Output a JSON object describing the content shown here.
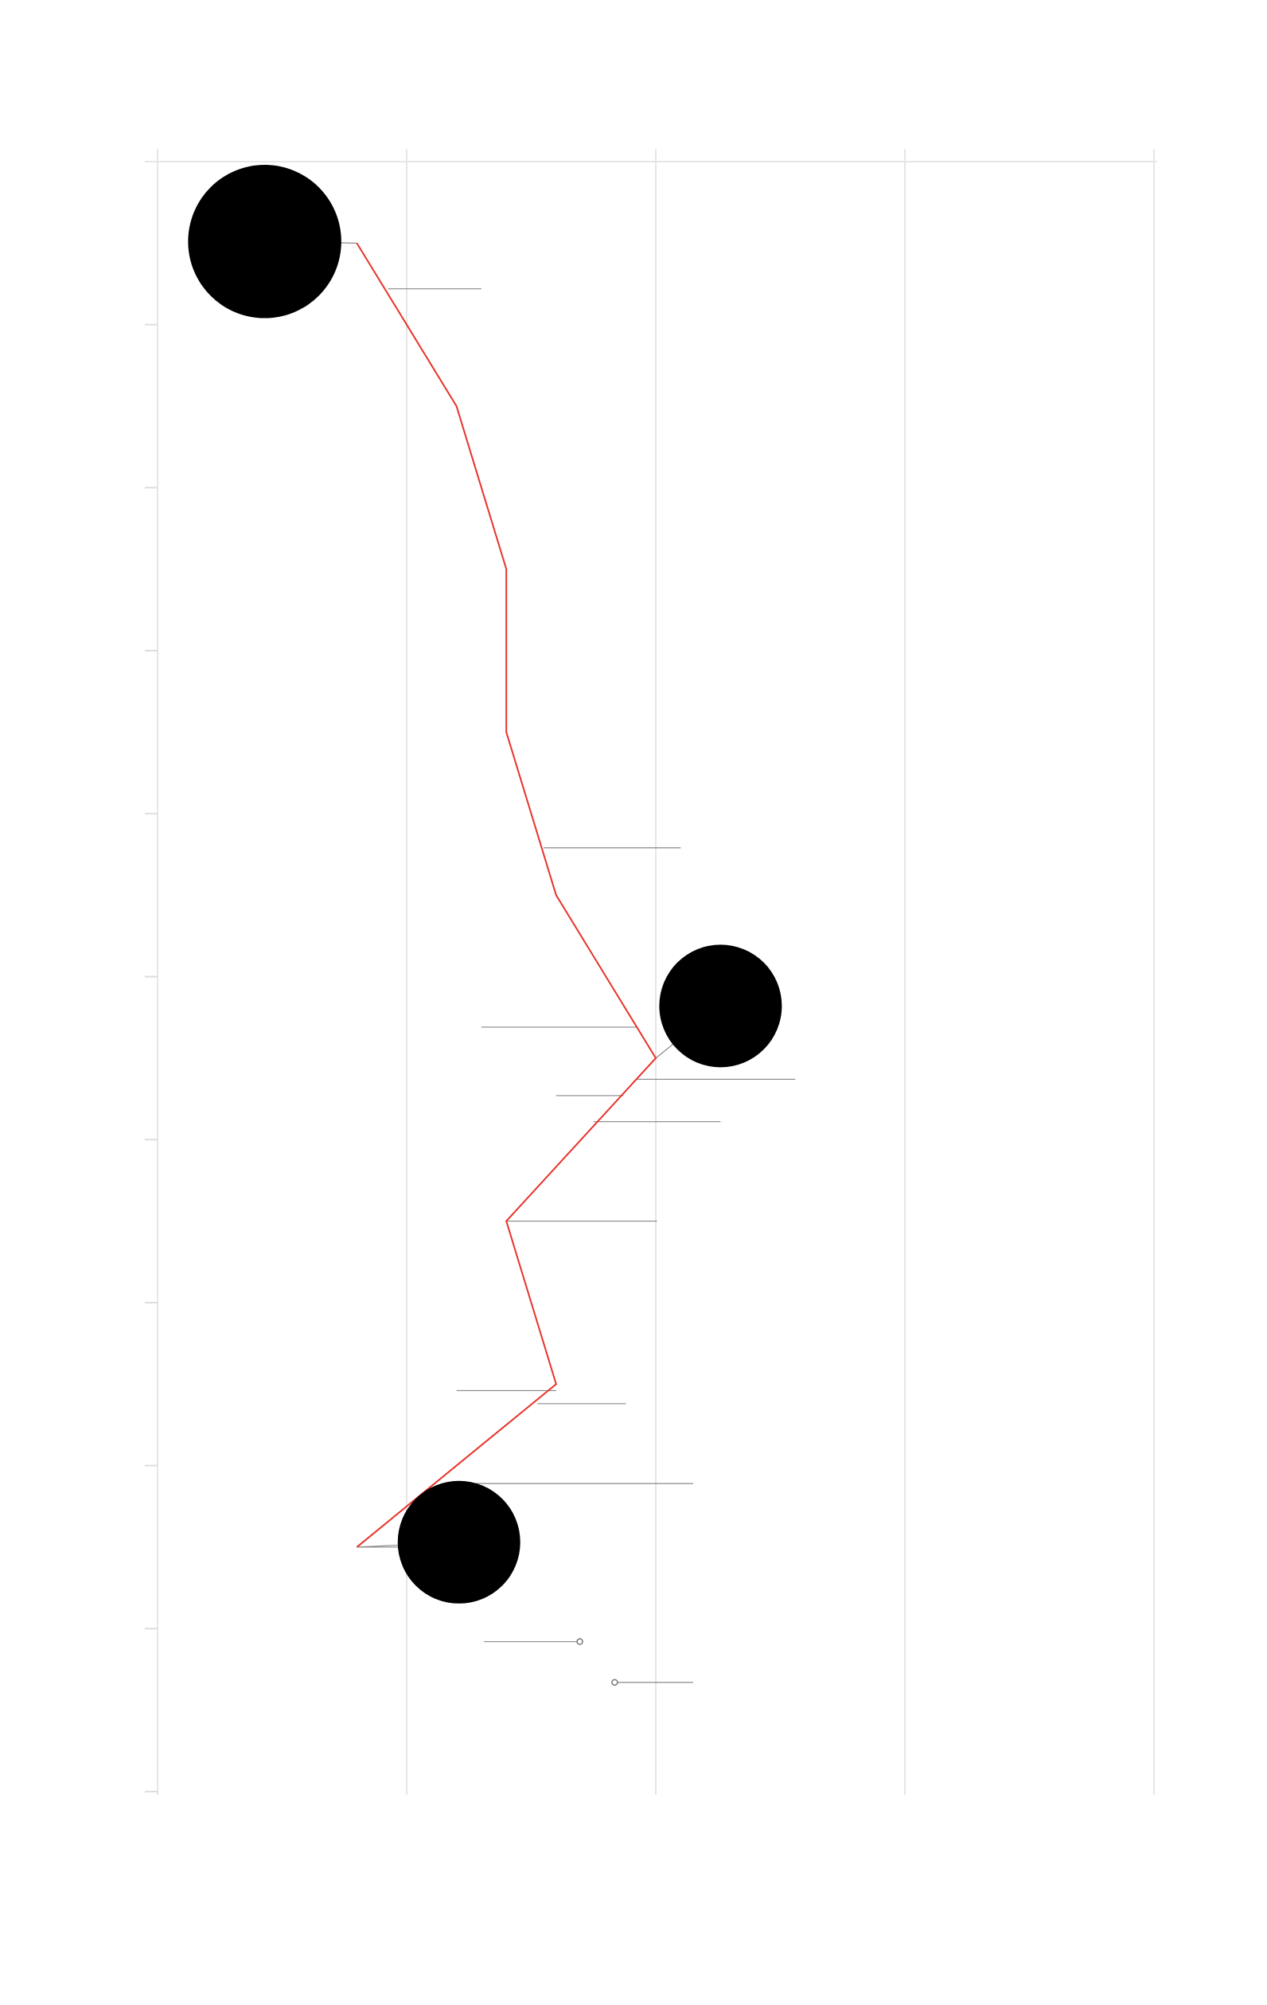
{
  "chart_data": {
    "type": "line",
    "title": "",
    "xlabel": "",
    "ylabel": "",
    "orientation": "vertical-path",
    "xlim": [
      0,
      8
    ],
    "ylim": [
      0,
      10
    ],
    "grid": {
      "vertical": true,
      "horizontal": false
    },
    "legend": "none",
    "x_gridlines": [
      0,
      2,
      4,
      6,
      8
    ],
    "y_ticks": [
      0,
      1,
      2,
      3,
      4,
      5,
      6,
      7,
      8,
      9,
      10
    ],
    "series": [
      {
        "color": "#e8322a",
        "points": [
          {
            "x": 1.6,
            "y": 0.5
          },
          {
            "x": 2.4,
            "y": 1.5
          },
          {
            "x": 2.8,
            "y": 2.5
          },
          {
            "x": 2.8,
            "y": 3.5
          },
          {
            "x": 3.2,
            "y": 4.5
          },
          {
            "x": 4.0,
            "y": 5.5
          },
          {
            "x": 2.8,
            "y": 6.5
          },
          {
            "x": 3.2,
            "y": 7.5
          },
          {
            "x": 1.6,
            "y": 8.5
          }
        ]
      }
    ],
    "highlight_markers": [
      {
        "x": 0.86,
        "y": 0.49,
        "size": 3,
        "connect_to": 0
      },
      {
        "x": 4.52,
        "y": 5.18,
        "size": 2.4,
        "connect_to": 5
      },
      {
        "x": 2.42,
        "y": 8.47,
        "size": 2.4,
        "connect_to": 8
      }
    ],
    "annotations": [
      {
        "y": 0.78,
        "x_start": 1.85,
        "x_end": 2.6
      },
      {
        "y": 4.21,
        "x_start": 3.1,
        "x_end": 4.2
      },
      {
        "y": 5.31,
        "x_start": 2.6,
        "x_end": 3.85
      },
      {
        "y": 5.63,
        "x_start": 3.85,
        "x_end": 5.12
      },
      {
        "y": 5.73,
        "x_start": 3.2,
        "x_end": 3.74
      },
      {
        "y": 5.89,
        "x_start": 3.5,
        "x_end": 4.52
      },
      {
        "y": 6.5,
        "x_start": 2.8,
        "x_end": 4.01
      },
      {
        "y": 7.54,
        "x_start": 2.4,
        "x_end": 3.2
      },
      {
        "y": 7.62,
        "x_start": 3.05,
        "x_end": 3.76
      },
      {
        "y": 8.11,
        "x_start": 2.3,
        "x_end": 4.3
      },
      {
        "y": 8.5,
        "x_start": 1.6,
        "x_end": 2.42
      },
      {
        "y": 9.08,
        "x_start": 2.62,
        "x_end": 3.39,
        "end_marker": "end"
      },
      {
        "y": 9.33,
        "x_start": 3.67,
        "x_end": 4.3,
        "end_marker": "start"
      }
    ]
  }
}
